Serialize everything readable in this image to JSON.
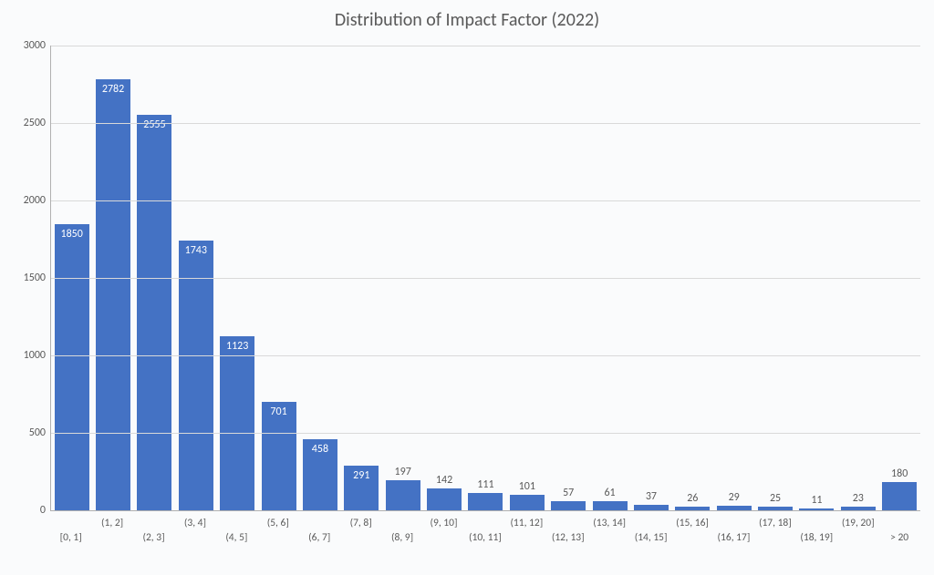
{
  "chart": {
    "type": "histogram",
    "title": "Distribution of Impact Factor (2022)",
    "title_fontsize": 20,
    "title_color": "#595959",
    "background_color": "#fafbfc",
    "bar_color": "#4472c4",
    "grid_color": "#d9d9d9",
    "axis_color": "#b0b0b0",
    "label_color": "#595959",
    "value_label_color_inside": "#ffffff",
    "value_label_color_outside": "#595959",
    "tick_fontsize": 12,
    "xlabel_fontsize": 11.5,
    "value_label_fontsize": 12,
    "ylim": [
      0,
      3000
    ],
    "ytick_step": 500,
    "yticks": [
      0,
      500,
      1000,
      1500,
      2000,
      2500,
      3000
    ],
    "bar_width_pct": 84,
    "value_inside_threshold": 250,
    "categories": [
      "[0, 1]",
      "(1, 2]",
      "(2, 3]",
      "(3, 4]",
      "(4, 5]",
      "(5, 6]",
      "(6, 7]",
      "(7, 8]",
      "(8, 9]",
      "(9, 10]",
      "(10, 11]",
      "(11, 12]",
      "(12, 13]",
      "(13, 14]",
      "(14, 15]",
      "(15, 16]",
      "(16, 17]",
      "(17, 18]",
      "(18, 19]",
      "(19, 20]",
      "> 20"
    ],
    "values": [
      1850,
      2782,
      2555,
      1743,
      1123,
      701,
      458,
      291,
      197,
      142,
      111,
      101,
      57,
      61,
      37,
      26,
      29,
      25,
      11,
      23,
      180
    ]
  }
}
